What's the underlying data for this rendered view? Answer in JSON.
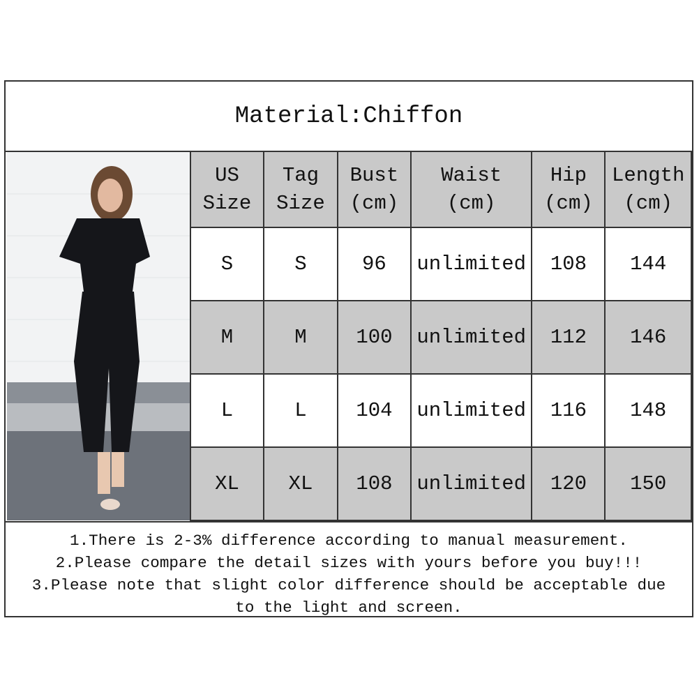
{
  "title": "Material:Chiffon",
  "table": {
    "headers": [
      [
        "US",
        "Size"
      ],
      [
        "Tag",
        "Size"
      ],
      [
        "Bust",
        "(cm)"
      ],
      [
        "Waist",
        "(cm)"
      ],
      [
        "Hip",
        "(cm)"
      ],
      [
        "Length",
        "(cm)"
      ]
    ],
    "rows": [
      [
        "S",
        "S",
        "96",
        "unlimited",
        "108",
        "144"
      ],
      [
        "M",
        "M",
        "100",
        "unlimited",
        "112",
        "146"
      ],
      [
        "L",
        "L",
        "104",
        "unlimited",
        "116",
        "148"
      ],
      [
        "XL",
        "XL",
        "108",
        "unlimited",
        "120",
        "150"
      ]
    ]
  },
  "notes": [
    "1.There is 2-3% difference according to manual measurement.",
    "2.Please compare the detail sizes with yours before you buy!!!",
    "3.Please note that slight color difference should be acceptable due",
    "to the light and screen."
  ],
  "colors": {
    "header_gray": "#c9c9c9",
    "border": "#333333"
  }
}
